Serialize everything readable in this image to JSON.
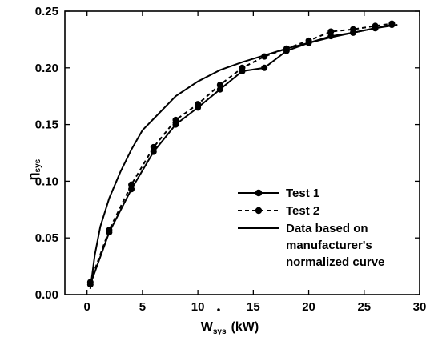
{
  "chart_data": {
    "type": "line",
    "title": "",
    "xlabel": {
      "main": "W",
      "sub": "sys",
      "unit": "(kW)"
    },
    "ylabel": {
      "main": "η",
      "sub": "sys"
    },
    "xlim": [
      -2,
      30
    ],
    "ylim": [
      0,
      0.25
    ],
    "xticks": [
      0,
      5,
      10,
      15,
      20,
      25,
      30
    ],
    "xtick_labels": [
      "0",
      "5",
      "10",
      "15",
      "20",
      "25",
      "30"
    ],
    "yticks": [
      0.0,
      0.05,
      0.1,
      0.15,
      0.2,
      0.25
    ],
    "ytick_labels": [
      "0.00",
      "0.05",
      "0.10",
      "0.15",
      "0.20",
      "0.25"
    ],
    "grid": false,
    "legend_position": "lower-right",
    "series": [
      {
        "name": "Test 1",
        "style": "solid-line-markers",
        "color": "#000000",
        "x": [
          0.3,
          2,
          4,
          6,
          8,
          10,
          12,
          14,
          16,
          18,
          20,
          22,
          24,
          26,
          27.5
        ],
        "y": [
          0.009,
          0.055,
          0.093,
          0.126,
          0.15,
          0.165,
          0.181,
          0.197,
          0.2,
          0.215,
          0.222,
          0.228,
          0.231,
          0.235,
          0.238
        ]
      },
      {
        "name": "Test 2",
        "style": "dashed-line-markers",
        "color": "#000000",
        "x": [
          0.3,
          2,
          4,
          6,
          8,
          10,
          12,
          14,
          16,
          18,
          20,
          22,
          24,
          26,
          27.5
        ],
        "y": [
          0.011,
          0.057,
          0.097,
          0.13,
          0.154,
          0.168,
          0.185,
          0.2,
          0.21,
          0.217,
          0.224,
          0.232,
          0.234,
          0.237,
          0.239
        ]
      },
      {
        "name": "Data based on manufacturer's normalized curve",
        "legend_lines": [
          "Data based on",
          "manufacturer's",
          "normalized curve"
        ],
        "style": "solid-line",
        "color": "#000000",
        "x": [
          0.3,
          0.7,
          1.2,
          2,
          3,
          4,
          5,
          6,
          8,
          10,
          12,
          14,
          16,
          18,
          20,
          22,
          24,
          26,
          28
        ],
        "y": [
          0.005,
          0.035,
          0.06,
          0.085,
          0.108,
          0.128,
          0.145,
          0.155,
          0.175,
          0.188,
          0.198,
          0.205,
          0.211,
          0.217,
          0.222,
          0.227,
          0.231,
          0.235,
          0.238
        ]
      }
    ]
  }
}
